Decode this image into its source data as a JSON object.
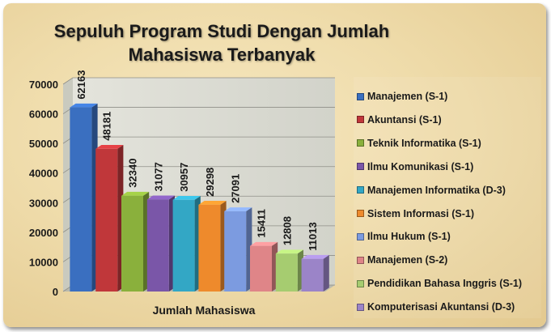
{
  "chart_data": {
    "type": "bar",
    "title_line1": "Sepuluh Program Studi Dengan Jumlah",
    "title_line2": "Mahasiswa Terbanyak",
    "xlabel": "Jumlah Mahasiswa",
    "ylabel": "",
    "ylim": [
      0,
      70000
    ],
    "yticks": [
      "0",
      "10000",
      "20000",
      "30000",
      "40000",
      "50000",
      "60000",
      "70000"
    ],
    "grid": true,
    "legend_position": "right",
    "series": [
      {
        "name": "Manajemen (S-1)",
        "value": 62163,
        "label": "62163",
        "color": "#3a6fc0"
      },
      {
        "name": "Akuntansi (S-1)",
        "value": 48181,
        "label": "48181",
        "color": "#c0373a"
      },
      {
        "name": "Teknik Informatika (S-1)",
        "value": 32340,
        "label": "32340",
        "color": "#8ab03c"
      },
      {
        "name": "Ilmu Komunikasi (S-1)",
        "value": 31077,
        "label": "31077",
        "color": "#7a56a8"
      },
      {
        "name": "Manajemen Informatika (D-3)",
        "value": 30957,
        "label": "30957",
        "color": "#33a7c5"
      },
      {
        "name": "Sistem Informasi (S-1)",
        "value": 29298,
        "label": "29298",
        "color": "#ee8a2c"
      },
      {
        "name": "Ilmu Hukum (S-1)",
        "value": 27091,
        "label": "27091",
        "color": "#7c9be0"
      },
      {
        "name": "Manajemen (S-2)",
        "value": 15411,
        "label": "15411",
        "color": "#df8588"
      },
      {
        "name": "Pendidikan Bahasa Inggris (S-1)",
        "value": 12808,
        "label": "12808",
        "color": "#a6cc70"
      },
      {
        "name": "Komputerisasi Akuntansi (D-3)",
        "value": 11013,
        "label": "11013",
        "color": "#9b84c8"
      }
    ]
  }
}
